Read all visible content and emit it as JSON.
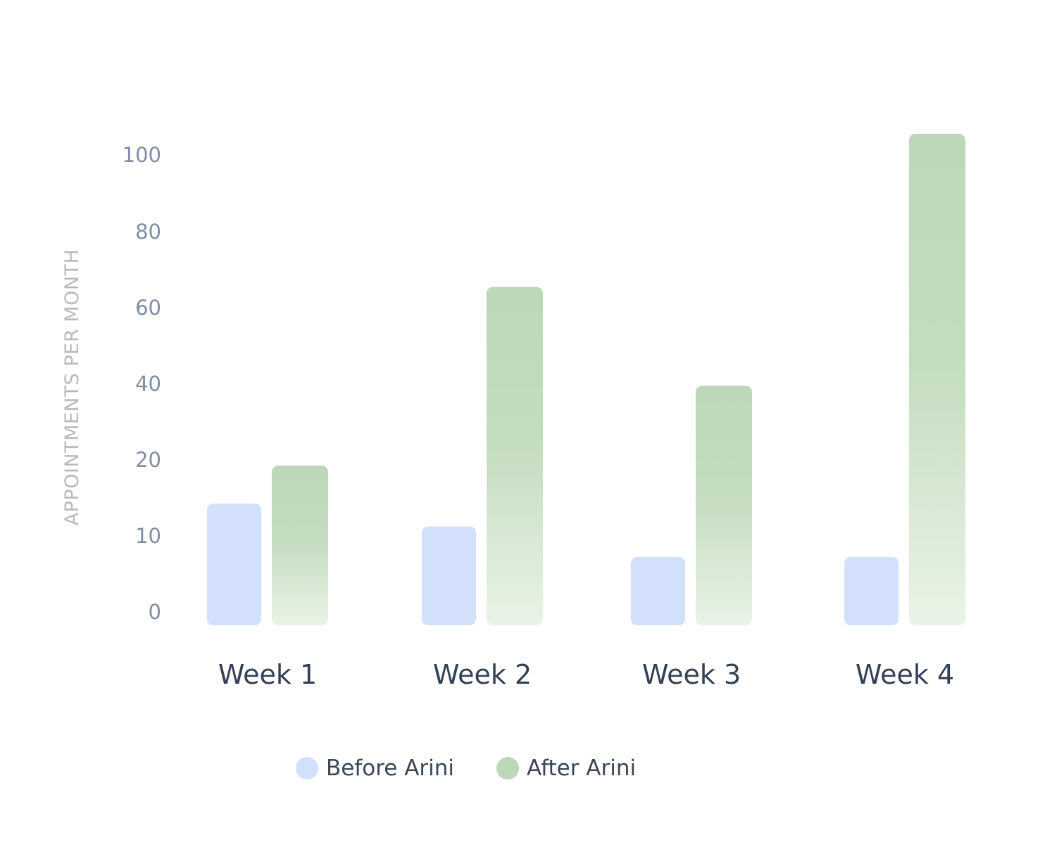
{
  "chart_data": {
    "type": "bar",
    "ylabel": "APPOINTMENTS PER MONTH",
    "categories": [
      "Week 1",
      "Week 2",
      "Week 3",
      "Week 4"
    ],
    "y_ticks": [
      0,
      10,
      20,
      40,
      60,
      80,
      100
    ],
    "series": [
      {
        "name": "Before Arini",
        "values": [
          16,
          13,
          9,
          9
        ],
        "color": "#d2e0fb"
      },
      {
        "name": "After Arini",
        "values": [
          22,
          69,
          43,
          109
        ],
        "color": "#bcd8b8"
      }
    ],
    "grid": false,
    "legend_position": "bottom-center"
  }
}
